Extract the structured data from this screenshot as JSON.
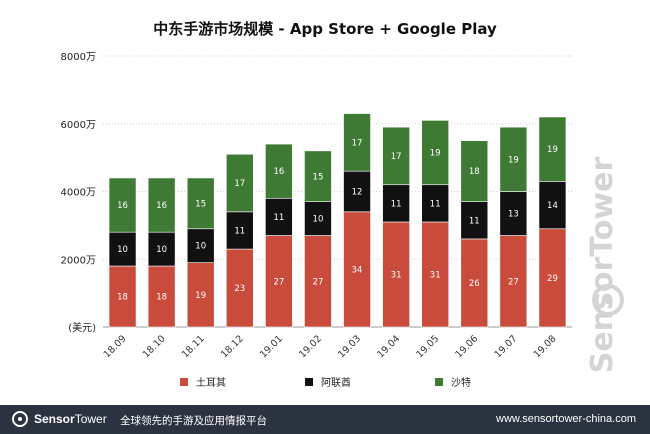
{
  "chart_data": {
    "type": "bar",
    "stacked": true,
    "title": "中东手游市场规模 - App Store + Google Play",
    "ylabel": "(美元)",
    "yticks": [
      "2000万",
      "4000万",
      "6000万",
      "8000万"
    ],
    "ytick_values": [
      2000,
      4000,
      6000,
      8000
    ],
    "ylim": [
      0,
      8000
    ],
    "unit_multiplier": 100,
    "categories": [
      "18.09",
      "18.10",
      "18.11",
      "18.12",
      "19.01",
      "19.02",
      "19.03",
      "19.04",
      "19.05",
      "19.06",
      "19.07",
      "19.08"
    ],
    "series": [
      {
        "name": "土耳其",
        "color": "#c94b3b",
        "values": [
          18,
          18,
          19,
          23,
          27,
          27,
          34,
          31,
          31,
          26,
          27,
          29
        ]
      },
      {
        "name": "阿联酋",
        "color": "#111111",
        "values": [
          10,
          10,
          10,
          11,
          11,
          10,
          12,
          11,
          11,
          11,
          13,
          14
        ]
      },
      {
        "name": "沙特",
        "color": "#3f7a35",
        "values": [
          16,
          16,
          15,
          17,
          16,
          15,
          17,
          17,
          19,
          18,
          19,
          19
        ]
      }
    ],
    "legend_position": "bottom",
    "grid": true
  },
  "watermark": {
    "text": "SensorTower"
  },
  "footer": {
    "brand_part1": "Sensor",
    "brand_part2": "Tower",
    "slogan": "全球领先的手游及应用情报平台",
    "url": "www.sensortower-china.com"
  }
}
